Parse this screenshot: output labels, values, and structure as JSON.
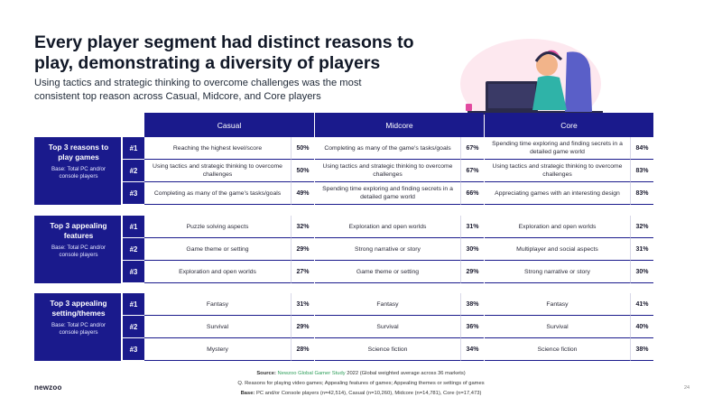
{
  "title": "Every player segment had distinct reasons to play, demonstrating a diversity of players",
  "subtitle": "Using tactics and strategic thinking to overcome challenges was the most consistent top reason across Casual, Midcore, and Core players",
  "columns": [
    "Casual",
    "Midcore",
    "Core"
  ],
  "sections": [
    {
      "heading": "Top 3 reasons to play games",
      "base": "Base: Total PC and/or console players",
      "rows": [
        {
          "rank": "#1",
          "cells": [
            [
              "Reaching the highest level/score",
              "50%"
            ],
            [
              "Completing as many of the game's tasks/goals",
              "67%"
            ],
            [
              "Spending time exploring and finding secrets in a detailed game world",
              "84%"
            ]
          ]
        },
        {
          "rank": "#2",
          "cells": [
            [
              "Using tactics and strategic thinking to overcome challenges",
              "50%"
            ],
            [
              "Using tactics and strategic thinking to overcome challenges",
              "67%"
            ],
            [
              "Using tactics and strategic thinking to overcome challenges",
              "83%"
            ]
          ]
        },
        {
          "rank": "#3",
          "cells": [
            [
              "Completing as many of the game's tasks/goals",
              "49%"
            ],
            [
              "Spending time exploring and finding secrets in a detailed game world",
              "66%"
            ],
            [
              "Appreciating games with an interesting design",
              "83%"
            ]
          ]
        }
      ]
    },
    {
      "heading": "Top 3 appealing features",
      "base": "Base: Total PC and/or console players",
      "rows": [
        {
          "rank": "#1",
          "cells": [
            [
              "Puzzle solving aspects",
              "32%"
            ],
            [
              "Exploration and open worlds",
              "31%"
            ],
            [
              "Exploration and open worlds",
              "32%"
            ]
          ]
        },
        {
          "rank": "#2",
          "cells": [
            [
              "Game theme or setting",
              "29%"
            ],
            [
              "Strong narrative or story",
              "30%"
            ],
            [
              "Multiplayer and social aspects",
              "31%"
            ]
          ]
        },
        {
          "rank": "#3",
          "cells": [
            [
              "Exploration and open worlds",
              "27%"
            ],
            [
              "Game theme or setting",
              "29%"
            ],
            [
              "Strong narrative or story",
              "30%"
            ]
          ]
        }
      ]
    },
    {
      "heading": "Top 3 appealing setting/themes",
      "base": "Base: Total PC and/or console players",
      "rows": [
        {
          "rank": "#1",
          "cells": [
            [
              "Fantasy",
              "31%"
            ],
            [
              "Fantasy",
              "38%"
            ],
            [
              "Fantasy",
              "41%"
            ]
          ]
        },
        {
          "rank": "#2",
          "cells": [
            [
              "Survival",
              "29%"
            ],
            [
              "Survival",
              "36%"
            ],
            [
              "Survival",
              "40%"
            ]
          ]
        },
        {
          "rank": "#3",
          "cells": [
            [
              "Mystery",
              "28%"
            ],
            [
              "Science fiction",
              "34%"
            ],
            [
              "Science fiction",
              "38%"
            ]
          ]
        }
      ]
    }
  ],
  "footer": {
    "source_label": "Source:",
    "source_name": "Newzoo Global Gamer Study",
    "source_rest": " 2022 (Global weighted average across 36 markets)",
    "question": "Q. Reasons for playing video games; Appealing features of games; Appealing themes or settings of games",
    "base_label": "Base:",
    "base_rest": " PC and/or Console players (n=42,514), Casual (n=10,260), Midcore (n=14,781), Core (n=17,473)"
  },
  "logo": "newzoo",
  "page_number": "24",
  "colors": {
    "navy": "#1a1a8c",
    "source_green": "#2e9e5a"
  }
}
